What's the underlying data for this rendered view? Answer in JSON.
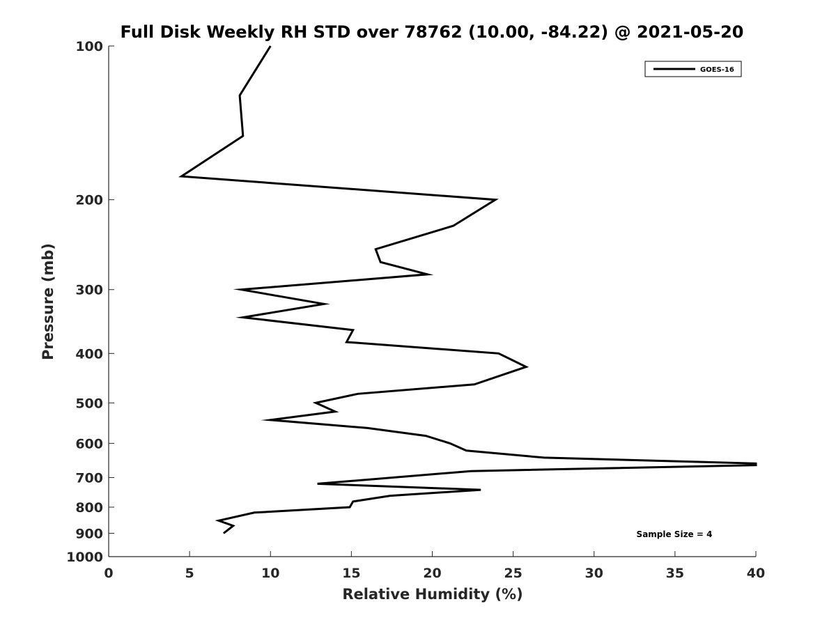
{
  "chart_data": {
    "type": "line",
    "title": "Full Disk Weekly RH STD over 78762 (10.00, -84.22) @ 2021-05-20",
    "xlabel": "Relative Humidity (%)",
    "ylabel": "Pressure (mb)",
    "xlim": [
      0,
      40
    ],
    "ylim": [
      100,
      1000
    ],
    "y_scale": "log",
    "y_reversed": true,
    "x_ticks": [
      0,
      5,
      10,
      15,
      20,
      25,
      30,
      35,
      40
    ],
    "y_ticks": [
      100,
      200,
      300,
      400,
      500,
      600,
      700,
      800,
      900,
      1000
    ],
    "grid": false,
    "legend_position": "top-right",
    "series": [
      {
        "name": "GOES-16",
        "color": "#000000",
        "points": [
          {
            "x": 10.0,
            "y": 100
          },
          {
            "x": 8.1,
            "y": 125
          },
          {
            "x": 8.3,
            "y": 150
          },
          {
            "x": 4.5,
            "y": 180
          },
          {
            "x": 23.9,
            "y": 200
          },
          {
            "x": 21.3,
            "y": 225
          },
          {
            "x": 16.5,
            "y": 250
          },
          {
            "x": 16.8,
            "y": 265
          },
          {
            "x": 19.7,
            "y": 280
          },
          {
            "x": 8.2,
            "y": 300
          },
          {
            "x": 13.3,
            "y": 320
          },
          {
            "x": 8.3,
            "y": 340
          },
          {
            "x": 15.1,
            "y": 360
          },
          {
            "x": 14.7,
            "y": 380
          },
          {
            "x": 24.1,
            "y": 400
          },
          {
            "x": 25.8,
            "y": 425
          },
          {
            "x": 22.6,
            "y": 460
          },
          {
            "x": 15.4,
            "y": 480
          },
          {
            "x": 12.8,
            "y": 500
          },
          {
            "x": 14.0,
            "y": 520
          },
          {
            "x": 10.0,
            "y": 540
          },
          {
            "x": 16.0,
            "y": 560
          },
          {
            "x": 19.6,
            "y": 580
          },
          {
            "x": 21.1,
            "y": 600
          },
          {
            "x": 22.1,
            "y": 620
          },
          {
            "x": 26.9,
            "y": 640
          },
          {
            "x": 40.0,
            "y": 657
          },
          {
            "x": 40.0,
            "y": 662
          },
          {
            "x": 22.4,
            "y": 680
          },
          {
            "x": 12.9,
            "y": 720
          },
          {
            "x": 23.0,
            "y": 740
          },
          {
            "x": 17.4,
            "y": 760
          },
          {
            "x": 15.1,
            "y": 780
          },
          {
            "x": 14.9,
            "y": 800
          },
          {
            "x": 9.0,
            "y": 820
          },
          {
            "x": 6.8,
            "y": 850
          },
          {
            "x": 7.7,
            "y": 870
          },
          {
            "x": 7.1,
            "y": 900
          }
        ]
      }
    ],
    "annotations": [
      "Sample Size = 4"
    ]
  }
}
